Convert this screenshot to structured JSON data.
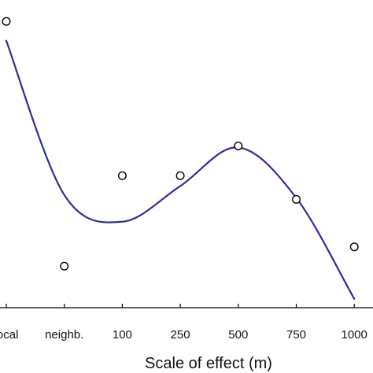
{
  "chart_data": {
    "type": "scatter",
    "title": "",
    "xlabel": "Scale of effect (m)",
    "ylabel": "",
    "categories": [
      "local",
      "neighb.",
      "100",
      "250",
      "500",
      "750",
      "1000"
    ],
    "series": [
      {
        "kind": "points",
        "marker": "open-circle",
        "values": [
          0.965,
          0.14,
          0.445,
          0.445,
          0.545,
          0.365,
          0.205
        ]
      },
      {
        "kind": "smooth-line",
        "color": "#2c2ca0",
        "values": [
          0.9,
          0.38,
          0.29,
          0.41,
          0.54,
          0.37,
          0.03
        ]
      }
    ],
    "grid": false,
    "legend": "none",
    "colors": {
      "line": "#2c2ca0",
      "marker_edge": "#000000",
      "axis": "#000000",
      "text": "#111111"
    }
  }
}
